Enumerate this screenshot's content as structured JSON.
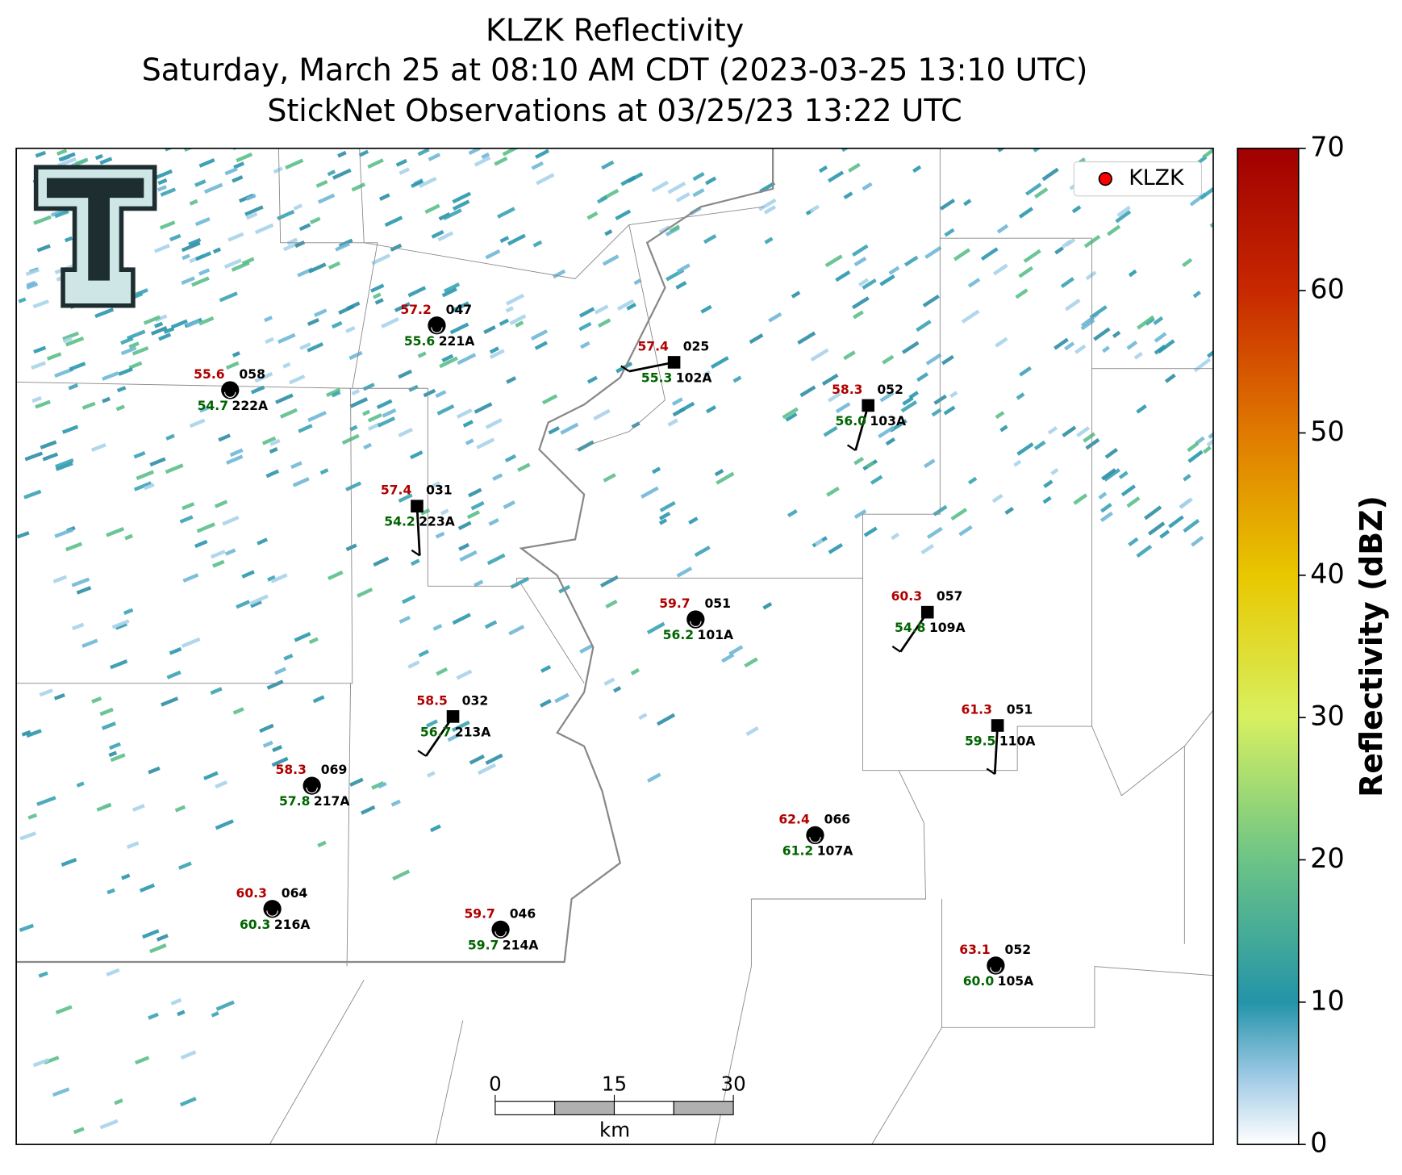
{
  "title": [
    "KLZK Reflectivity",
    "Saturday, March 25 at 08:10 AM CDT (2023-03-25 13:10 UTC)",
    "StickNet Observations at 03/25/23 13:22 UTC"
  ],
  "legend": {
    "label": "KLZK",
    "color": "#ff0000",
    "corner": "upper right"
  },
  "colorbar": {
    "label": "Reflectivity (dBZ)",
    "lim": [
      0,
      70
    ],
    "ticks": [
      0,
      10,
      20,
      30,
      40,
      50,
      60,
      70
    ]
  },
  "scale_bar": {
    "ticks": [
      0,
      15,
      30
    ],
    "unit": "km"
  },
  "stations": [
    {
      "id": "221A",
      "temperature": 57.2,
      "dewpoint": 55.6,
      "code": "047"
    },
    {
      "id": "222A",
      "temperature": 55.6,
      "dewpoint": 54.7,
      "code": "058"
    },
    {
      "id": "102A",
      "temperature": 57.4,
      "dewpoint": 55.3,
      "code": "025"
    },
    {
      "id": "103A",
      "temperature": 58.3,
      "dewpoint": 56.0,
      "code": "052"
    },
    {
      "id": "223A",
      "temperature": 57.4,
      "dewpoint": 54.2,
      "code": "031"
    },
    {
      "id": "101A",
      "temperature": 59.7,
      "dewpoint": 56.2,
      "code": "051"
    },
    {
      "id": "109A",
      "temperature": 60.3,
      "dewpoint": 54.8,
      "code": "057"
    },
    {
      "id": "213A",
      "temperature": 58.5,
      "dewpoint": 56.7,
      "code": "032"
    },
    {
      "id": "110A",
      "temperature": 61.3,
      "dewpoint": 59.5,
      "code": "051"
    },
    {
      "id": "217A",
      "temperature": 58.3,
      "dewpoint": 57.8,
      "code": "069"
    },
    {
      "id": "107A",
      "temperature": 62.4,
      "dewpoint": 61.2,
      "code": "066"
    },
    {
      "id": "216A",
      "temperature": 60.3,
      "dewpoint": 60.3,
      "code": "064"
    },
    {
      "id": "214A",
      "temperature": 59.7,
      "dewpoint": 59.7,
      "code": "046"
    },
    {
      "id": "105A",
      "temperature": 63.1,
      "dewpoint": 60.0,
      "code": "052"
    }
  ]
}
